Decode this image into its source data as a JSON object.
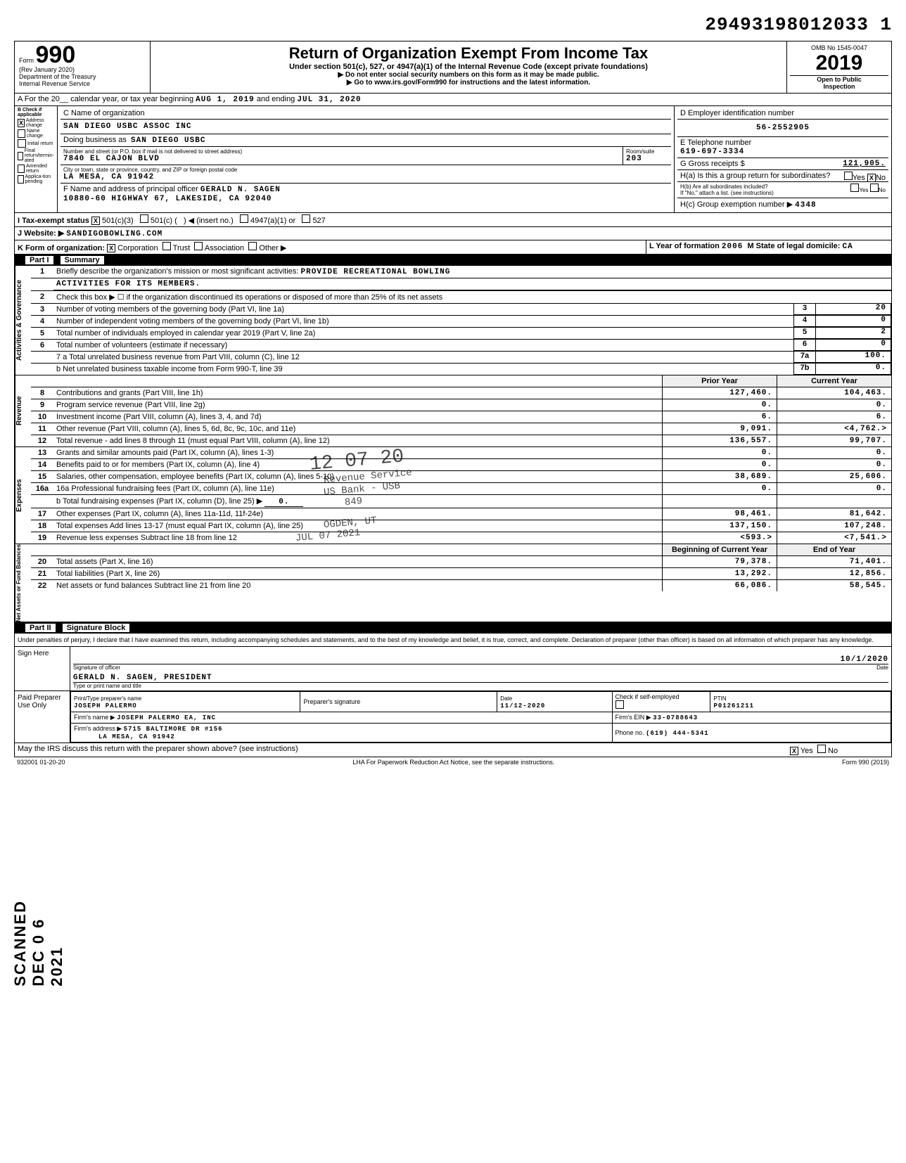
{
  "doc_id": "29493198012033 1",
  "form": {
    "form_label": "Form",
    "number": "990",
    "rev": "(Rev January 2020)",
    "dept": "Department of the Treasury",
    "irs": "Internal Revenue Service"
  },
  "title": {
    "main": "Return of Organization Exempt From Income Tax",
    "sub": "Under section 501(c), 527, or 4947(a)(1) of the Internal Revenue Code (except private foundations)",
    "arrow1": "▶ Do not enter social security numbers on this form as it may be made public.",
    "arrow2": "▶ Go to www.irs.gov/Form990 for instructions and the latest information."
  },
  "year_box": {
    "omb": "OMB No 1545-0047",
    "year": "2019",
    "open": "Open to Public",
    "insp": "Inspection"
  },
  "line_a": {
    "prefix": "A For the 20__ calendar year, or tax year beginning",
    "begin": "AUG 1, 2019",
    "mid": "and ending",
    "end": "JUL 31, 2020"
  },
  "section_b": {
    "header": "B Check if applicable",
    "items": [
      {
        "label": "Address change",
        "checked": true
      },
      {
        "label": "Name change",
        "checked": false
      },
      {
        "label": "Initial return",
        "checked": false
      },
      {
        "label": "Final return/termin-ated",
        "checked": false
      },
      {
        "label": "Amended return",
        "checked": false
      },
      {
        "label": "Applica-tion pending",
        "checked": false
      }
    ]
  },
  "section_c": {
    "c_label": "C Name of organization",
    "org": "SAN DIEGO USBC ASSOC INC",
    "dba_label": "Doing business as",
    "dba": "SAN DIEGO USBC",
    "street_label": "Number and street (or P.O. box if mail is not delivered to street address)",
    "street": "7840 EL CAJON BLVD",
    "room_label": "Room/suite",
    "room": "203",
    "city_label": "City or town, state or province, country, and ZIP or foreign postal code",
    "city": "LA MESA, CA  91942",
    "f_label": "F Name and address of principal officer",
    "officer": "GERALD N. SAGEN",
    "officer_addr": "10880-60 HIGHWAY 67, LAKESIDE, CA  92040"
  },
  "section_d": {
    "d_label": "D Employer identification number",
    "ein": "56-2552905",
    "e_label": "E Telephone number",
    "phone": "619-697-3334",
    "g_label": "G Gross receipts $",
    "gross": "121,905.",
    "h_a": "H(a) Is this a group return for subordinates?",
    "h_a_no": "No",
    "h_a_no_checked": "X",
    "h_b": "H(b) Are all subordinates included?",
    "h_b_yes": "Yes",
    "h_b_no": "No",
    "h_note": "If \"No,\" attach a list. (see instructions)",
    "h_c": "H(c) Group exemption number ▶",
    "h_c_val": "4348"
  },
  "line_i": {
    "label": "I Tax-exempt status",
    "opt1": "501(c)(3)",
    "opt1_checked": "X",
    "opt2": "501(c) (",
    "opt2b": ")  ◀ (insert no.)",
    "opt3": "4947(a)(1) or",
    "opt4": "527"
  },
  "line_j": {
    "label": "J Website: ▶",
    "val": "SANDIGOBOWLING.COM"
  },
  "line_k": {
    "label": "K Form of organization:",
    "corp": "Corporation",
    "corp_checked": "X",
    "trust": "Trust",
    "assoc": "Association",
    "other": "Other ▶"
  },
  "line_l": {
    "label": "L Year of formation",
    "val": "2006",
    "m_label": "M State of legal domicile:",
    "m_val": "CA"
  },
  "part1": {
    "title": "Part I",
    "sub": "Summary"
  },
  "ag_label": "Activities & Governance",
  "summary1": {
    "l1a": "Briefly describe the organization's mission or most significant activities:",
    "l1b": "PROVIDE RECREATIONAL BOWLING",
    "l1c": "ACTIVITIES FOR ITS MEMBERS.",
    "l2": "Check this box ▶ ☐ if the organization discontinued its operations or disposed of more than 25% of its net assets",
    "l3": "Number of voting members of the governing body (Part VI, line 1a)",
    "l3v": "20",
    "l4": "Number of independent voting members of the governing body (Part VI, line 1b)",
    "l4v": "0",
    "l5": "Total number of individuals employed in calendar year 2019 (Part V, line 2a)",
    "l5v": "2",
    "l6": "Total number of volunteers (estimate if necessary)",
    "l6v": "0",
    "l7a": "7 a Total unrelated business revenue from Part VIII, column (C), line 12",
    "l7av": "100.",
    "l7b": "b Net unrelated business taxable income from Form 990-T, line 39",
    "l7bv": "0."
  },
  "rev_label": "Revenue",
  "exp_label": "Expenses",
  "nab_label": "Net Assets or Fund Balances",
  "col_headers": {
    "prior": "Prior Year",
    "curr": "Current Year",
    "beg": "Beginning of Current Year",
    "end": "End of Year"
  },
  "revenue": [
    {
      "n": "8",
      "t": "Contributions and grants (Part VIII, line 1h)",
      "p": "127,460.",
      "c": "104,463."
    },
    {
      "n": "9",
      "t": "Program service revenue (Part VIII, line 2g)",
      "p": "0.",
      "c": "0."
    },
    {
      "n": "10",
      "t": "Investment income (Part VIII, column (A), lines 3, 4, and 7d)",
      "p": "6.",
      "c": "6."
    },
    {
      "n": "11",
      "t": "Other revenue (Part VIII, column (A), lines 5, 6d, 8c, 9c, 10c, and 11e)",
      "p": "9,091.",
      "c": "<4,762.>"
    },
    {
      "n": "12",
      "t": "Total revenue - add lines 8 through 11 (must equal Part VIII, column (A), line 12)",
      "p": "136,557.",
      "c": "99,707."
    }
  ],
  "expenses": [
    {
      "n": "13",
      "t": "Grants and similar amounts paid (Part IX, column (A), lines 1-3)",
      "p": "0.",
      "c": "0."
    },
    {
      "n": "14",
      "t": "Benefits paid to or for members (Part IX, column (A), line 4)",
      "p": "0.",
      "c": "0."
    },
    {
      "n": "15",
      "t": "Salaries, other compensation, employee benefits (Part IX, column (A), lines 5-10)",
      "p": "38,689.",
      "c": "25,606."
    },
    {
      "n": "16a",
      "t": "16a Professional fundraising fees (Part IX, column (A), line 11e)",
      "p": "0.",
      "c": "0."
    },
    {
      "n": "",
      "t": "b Total fundraising expenses (Part IX, column (D), line 25) ▶",
      "fr": "0.",
      "p": "",
      "c": ""
    },
    {
      "n": "17",
      "t": "Other expenses (Part IX, column (A), lines 11a-11d, 11f-24e)",
      "p": "98,461.",
      "c": "81,642."
    },
    {
      "n": "18",
      "t": "Total expenses Add lines 13-17 (must equal Part IX, column (A), line 25)",
      "p": "137,150.",
      "c": "107,248."
    },
    {
      "n": "19",
      "t": "Revenue less expenses Subtract line 18 from line 12",
      "p": "<593.>",
      "c": "<7,541.>"
    }
  ],
  "netassets": [
    {
      "n": "20",
      "t": "Total assets (Part X, line 16)",
      "p": "79,378.",
      "c": "71,401."
    },
    {
      "n": "21",
      "t": "Total liabilities (Part X, line 26)",
      "p": "13,292.",
      "c": "12,856."
    },
    {
      "n": "22",
      "t": "Net assets or fund balances Subtract line 21 from line 20",
      "p": "66,086.",
      "c": "58,545."
    }
  ],
  "part2": {
    "title": "Part II",
    "sub": "Signature Block"
  },
  "perjury": "Under penalties of perjury, I declare that I have examined this return, including accompanying schedules and statements, and to the best of my knowledge and belief, it is true, correct, and complete. Declaration of preparer (other than officer) is based on all information of which preparer has any knowledge.",
  "sign": {
    "here": "Sign Here",
    "sig_of": "Signature of officer",
    "date": "Date",
    "date_val": "10/1/2020",
    "name": "GERALD N. SAGEN, PRESIDENT",
    "name_sub": "Type or print name and title"
  },
  "preparer": {
    "label": "Paid Preparer Use Only",
    "pname_l": "Print/Type preparer's name",
    "pname": "JOSEPH PALERMO",
    "psig_l": "Preparer's signature",
    "pdate_l": "Date",
    "pdate": "11/12-2020",
    "pchk_l": "Check if self-employed",
    "ptin_l": "PTIN",
    "ptin": "P01261211",
    "firm_l": "Firm's name ▶",
    "firm": "JOSEPH PALERMO EA, INC",
    "ein_l": "Firm's EIN ▶",
    "ein": "33-0788643",
    "addr_l": "Firm's address ▶",
    "addr1": "5715 BALTIMORE DR #156",
    "addr2": "LA MESA, CA 91942",
    "phone_l": "Phone no.",
    "phone": "(619) 444-5341"
  },
  "discuss": {
    "q": "May the IRS discuss this return with the preparer shown above? (see instructions)",
    "yes": "Yes",
    "yes_checked": "X",
    "no": "No"
  },
  "footer": {
    "code": "932001 01-20-20",
    "lha": "LHA For Paperwork Reduction Act Notice, see the separate instructions.",
    "form": "Form 990 (2019)"
  },
  "stamps": {
    "date": "12 07 20",
    "s1": "Revenue Service",
    "s2": "US Bank - USB",
    "s3": "OGDEN, UT",
    "s4": "JUL 07 2021",
    "s5": "849"
  },
  "scanned": "SCANNED DEC 0 6 2021"
}
